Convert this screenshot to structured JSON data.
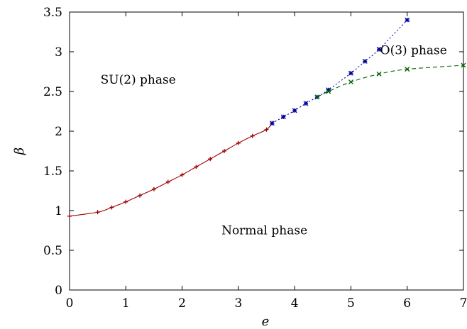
{
  "chart_data": {
    "type": "line",
    "xlabel": "e",
    "ylabel": "β",
    "xlim": [
      0,
      7
    ],
    "ylim": [
      0,
      3.5
    ],
    "xticks": [
      "0",
      "1",
      "2",
      "3",
      "4",
      "5",
      "6",
      "7"
    ],
    "yticks": [
      "0",
      "0.5",
      "1",
      "1.5",
      "2",
      "2.5",
      "3",
      "3.5"
    ],
    "grid": false,
    "annotations": [
      {
        "text": "SU(2) phase",
        "x": 0.55,
        "y": 2.6
      },
      {
        "text": "O(3) phase",
        "x": 5.52,
        "y": 2.97
      },
      {
        "text": "Normal phase",
        "x": 2.7,
        "y": 0.7
      }
    ],
    "series": [
      {
        "color": "#9b0000",
        "line": "solid",
        "marker": "plus",
        "points": [
          [
            0,
            0.93
          ],
          [
            0.5,
            0.98
          ],
          [
            0.75,
            1.04
          ],
          [
            1.0,
            1.11
          ],
          [
            1.25,
            1.19
          ],
          [
            1.5,
            1.27
          ],
          [
            1.75,
            1.36
          ],
          [
            2.0,
            1.45
          ],
          [
            2.25,
            1.55
          ],
          [
            2.5,
            1.65
          ],
          [
            2.75,
            1.75
          ],
          [
            3.0,
            1.85
          ],
          [
            3.25,
            1.94
          ],
          [
            3.5,
            2.02
          ],
          [
            3.6,
            2.1
          ]
        ]
      },
      {
        "color": "#0000a0",
        "line": "dotted",
        "marker": "star",
        "points": [
          [
            3.6,
            2.1
          ],
          [
            3.8,
            2.18
          ],
          [
            4.0,
            2.26
          ],
          [
            4.2,
            2.35
          ],
          [
            4.4,
            2.43
          ],
          [
            4.6,
            2.52
          ],
          [
            5.0,
            2.73
          ],
          [
            5.25,
            2.88
          ],
          [
            5.5,
            3.03
          ],
          [
            6.0,
            3.4
          ]
        ]
      },
      {
        "color": "#006400",
        "line": "dashed",
        "marker": "cross",
        "points": [
          [
            4.4,
            2.43
          ],
          [
            4.6,
            2.5
          ],
          [
            5.0,
            2.62
          ],
          [
            5.5,
            2.72
          ],
          [
            6.0,
            2.78
          ],
          [
            7.0,
            2.83
          ]
        ]
      }
    ]
  }
}
